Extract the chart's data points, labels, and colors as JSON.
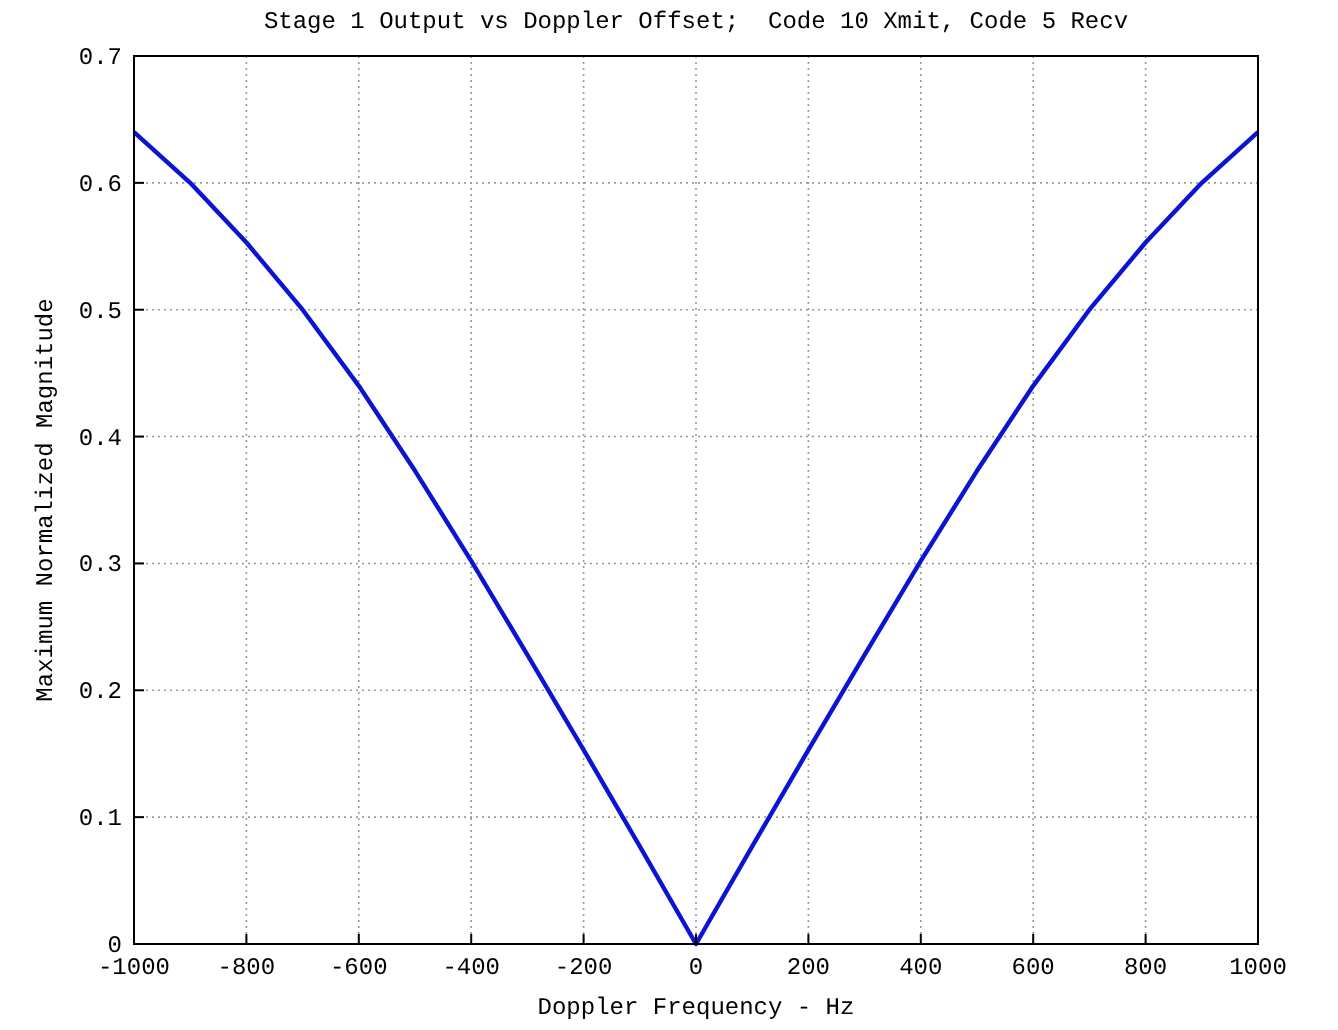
{
  "chart_data": {
    "type": "line",
    "title": "Stage 1 Output vs Doppler Offset;  Code 10 Xmit, Code 5 Recv",
    "xlabel": "Doppler Frequency - Hz",
    "ylabel": "Maximum Normalized Magnitude",
    "x": [
      -1000,
      -900,
      -800,
      -700,
      -600,
      -500,
      -400,
      -300,
      -200,
      -100,
      0,
      100,
      200,
      300,
      400,
      500,
      600,
      700,
      800,
      900,
      1000
    ],
    "series": [
      {
        "color": "#0a14d2",
        "values": [
          0.64,
          0.6,
          0.553,
          0.5,
          0.44,
          0.373,
          0.302,
          0.228,
          0.153,
          0.077,
          0,
          0.077,
          0.153,
          0.228,
          0.302,
          0.373,
          0.44,
          0.5,
          0.553,
          0.6,
          0.64
        ]
      }
    ],
    "xlim": [
      -1000,
      1000
    ],
    "xticks": [
      -1000,
      -800,
      -600,
      -400,
      -200,
      0,
      200,
      400,
      600,
      800,
      1000
    ],
    "ylim": [
      0,
      0.7
    ],
    "yticks": [
      0,
      0.1,
      0.2,
      0.3,
      0.4,
      0.5,
      0.6,
      0.7
    ],
    "grid": true,
    "line_style": "solid",
    "marker": "none"
  }
}
